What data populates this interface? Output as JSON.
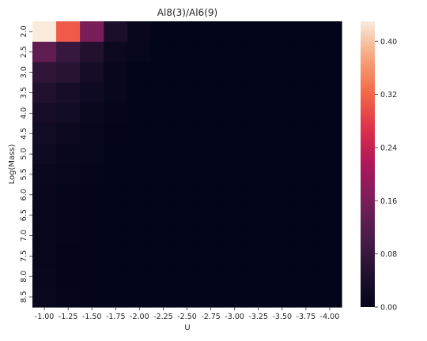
{
  "chart_data": {
    "type": "heatmap",
    "title": "Al8(3)/Al6(9)",
    "xlabel": "U",
    "ylabel": "Log(Mass)",
    "x_categories": [
      "-1.00",
      "-1.25",
      "-1.50",
      "-1.75",
      "-2.00",
      "-2.25",
      "-2.50",
      "-2.75",
      "-3.00",
      "-3.25",
      "-3.50",
      "-3.75",
      "-4.00"
    ],
    "y_categories": [
      "2.0",
      "2.5",
      "3.0",
      "3.5",
      "4.0",
      "4.5",
      "5.0",
      "5.5",
      "6.0",
      "6.5",
      "7.0",
      "7.5",
      "8.0",
      "8.5"
    ],
    "values": [
      [
        0.43,
        0.31,
        0.16,
        0.04,
        0.01,
        0.0,
        0.0,
        0.0,
        0.0,
        0.0,
        0.0,
        0.0,
        0.0
      ],
      [
        0.13,
        0.08,
        0.05,
        0.015,
        0.005,
        0.0,
        0.0,
        0.0,
        0.0,
        0.0,
        0.0,
        0.0,
        0.0
      ],
      [
        0.07,
        0.06,
        0.03,
        0.01,
        0.0,
        0.0,
        0.0,
        0.0,
        0.0,
        0.0,
        0.0,
        0.0,
        0.0
      ],
      [
        0.05,
        0.035,
        0.02,
        0.008,
        0.0,
        0.0,
        0.0,
        0.0,
        0.0,
        0.0,
        0.0,
        0.0,
        0.0
      ],
      [
        0.035,
        0.025,
        0.012,
        0.004,
        0.0,
        0.0,
        0.0,
        0.0,
        0.0,
        0.0,
        0.0,
        0.0,
        0.0
      ],
      [
        0.025,
        0.015,
        0.008,
        0.002,
        0.0,
        0.0,
        0.0,
        0.0,
        0.0,
        0.0,
        0.0,
        0.0,
        0.0
      ],
      [
        0.02,
        0.01,
        0.005,
        0.0,
        0.0,
        0.0,
        0.0,
        0.0,
        0.0,
        0.0,
        0.0,
        0.0,
        0.0
      ],
      [
        0.012,
        0.006,
        0.003,
        0.0,
        0.0,
        0.0,
        0.0,
        0.0,
        0.0,
        0.0,
        0.0,
        0.0,
        0.0
      ],
      [
        0.008,
        0.004,
        0.002,
        0.0,
        0.0,
        0.0,
        0.0,
        0.0,
        0.0,
        0.0,
        0.0,
        0.0,
        0.0
      ],
      [
        0.007,
        0.003,
        0.001,
        0.0,
        0.0,
        0.0,
        0.0,
        0.0,
        0.0,
        0.0,
        0.0,
        0.0,
        0.0
      ],
      [
        0.006,
        0.003,
        0.001,
        0.0,
        0.0,
        0.0,
        0.0,
        0.0,
        0.0,
        0.0,
        0.0,
        0.0,
        0.0
      ],
      [
        0.006,
        0.002,
        0.001,
        0.0,
        0.0,
        0.0,
        0.0,
        0.0,
        0.0,
        0.0,
        0.0,
        0.0,
        0.0
      ],
      [
        0.008,
        0.002,
        0.001,
        0.0,
        0.0,
        0.0,
        0.0,
        0.0,
        0.0,
        0.0,
        0.0,
        0.0,
        0.0
      ],
      [
        0.012,
        0.003,
        0.001,
        0.0,
        0.0,
        0.0,
        0.0,
        0.0,
        0.0,
        0.0,
        0.0,
        0.0,
        0.0
      ]
    ],
    "colorbar": {
      "vmin": 0.0,
      "vmax": 0.43,
      "ticks": [
        "0.00",
        "0.08",
        "0.16",
        "0.24",
        "0.32",
        "0.40"
      ],
      "colormap": "rocket"
    },
    "grid": false
  }
}
